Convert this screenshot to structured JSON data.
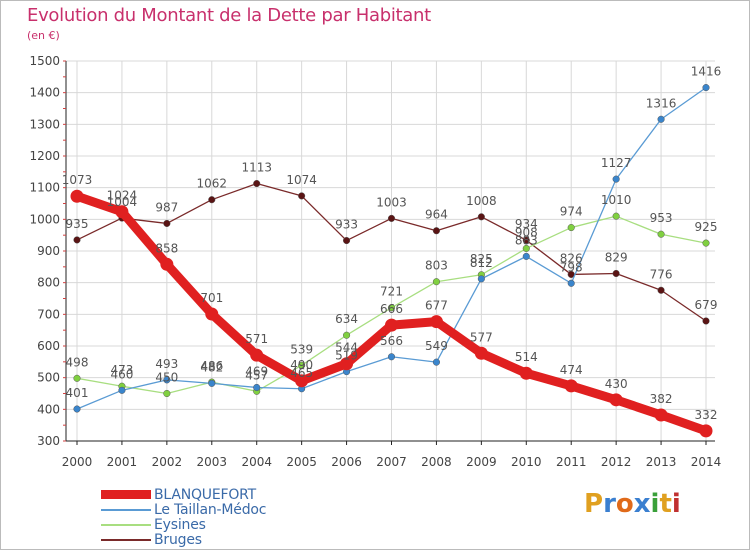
{
  "title": "Evolution du Montant de la Dette par Habitant",
  "subtitle": "(en €)",
  "logo": {
    "text": "Proxiti",
    "letters": [
      "P",
      "r",
      "o",
      "x",
      "i",
      "t",
      "i"
    ],
    "colors": [
      "#e0a020",
      "#3a7fd0",
      "#e06a1a",
      "#3a7fd0",
      "#3aa03a",
      "#e0a020",
      "#c03030"
    ]
  },
  "chart_data": {
    "type": "line",
    "x": [
      "2000",
      "2001",
      "2002",
      "2003",
      "2004",
      "2005",
      "2006",
      "2007",
      "2008",
      "2009",
      "2010",
      "2011",
      "2012",
      "2013",
      "2014"
    ],
    "ylim": [
      300,
      1500
    ],
    "yticks": [
      "300",
      "400",
      "500",
      "600",
      "700",
      "800",
      "900",
      "1000",
      "1100",
      "1200",
      "1300",
      "1400",
      "1500"
    ],
    "grid": true,
    "legend_position": "bottom-left",
    "series": [
      {
        "name": "BLANQUEFORT",
        "color": "#e02020",
        "marker": "#e02020",
        "label_color": "#555555",
        "thick": true,
        "values": [
          1073,
          1024,
          858,
          701,
          571,
          490,
          544,
          666,
          677,
          577,
          514,
          474,
          430,
          382,
          332
        ],
        "labels": [
          "1073",
          "1024",
          "858",
          "701",
          "571",
          "490",
          "544",
          "666",
          "677",
          "577",
          "514",
          "474",
          "430",
          "382",
          "332"
        ]
      },
      {
        "name": "Le Taillan-Médoc",
        "color": "#5a9bd4",
        "marker": "#3a85cc",
        "label_color": "#555555",
        "thick": false,
        "values": [
          401,
          460,
          493,
          482,
          469,
          465,
          519,
          566,
          549,
          812,
          883,
          798,
          1127,
          1316,
          1416
        ],
        "labels": [
          "401",
          "460",
          "493",
          "482",
          "469",
          "465",
          "519",
          "566",
          "549",
          "812",
          "883",
          "798",
          "1127",
          "1316",
          "1416"
        ]
      },
      {
        "name": "Eysines",
        "color": "#a8de80",
        "marker": "#80d040",
        "label_color": "#555555",
        "thick": false,
        "values": [
          498,
          473,
          450,
          486,
          457,
          539,
          634,
          721,
          803,
          825,
          908,
          974,
          1010,
          953,
          925
        ],
        "labels": [
          "498",
          "473",
          "450",
          "486",
          "457",
          "539",
          "634",
          "721",
          "803",
          "825",
          "908",
          "974",
          "1010",
          "953",
          "925"
        ]
      },
      {
        "name": "Bruges",
        "color": "#7a2a2a",
        "marker": "#5a1414",
        "label_color": "#555555",
        "thick": false,
        "values": [
          935,
          1004,
          987,
          1062,
          1113,
          1074,
          933,
          1003,
          964,
          1008,
          934,
          826,
          829,
          776,
          679
        ],
        "labels": [
          "935",
          "1004",
          "987",
          "1062",
          "1113",
          "1074",
          "933",
          "1003",
          "964",
          "1008",
          "934",
          "826",
          "829",
          "776",
          "679"
        ]
      }
    ]
  }
}
